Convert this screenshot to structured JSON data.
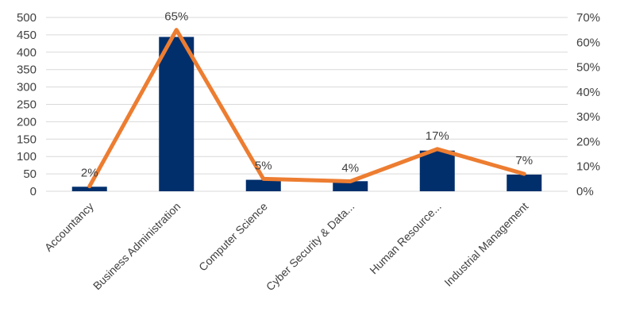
{
  "chart_data": {
    "type": "bar",
    "title": "",
    "xlabel": "",
    "ylabel": "",
    "categories": [
      "Accountancy",
      "Business Administration",
      "Computer Science",
      "Cyber Security & Data...",
      "Human Resource...",
      "Industrial Management"
    ],
    "series": [
      {
        "type": "bar",
        "axis": "left",
        "color": "#002f6c",
        "values": [
          13,
          444,
          33,
          29,
          117,
          48
        ]
      },
      {
        "type": "line",
        "axis": "right",
        "color": "#ed7d31",
        "values": [
          0.02,
          0.65,
          0.05,
          0.04,
          0.17,
          0.07
        ],
        "labels": [
          "2%",
          "65%",
          "5%",
          "4%",
          "17%",
          "7%"
        ]
      }
    ],
    "ylim": [
      0,
      500
    ],
    "yticks": [
      "0",
      "50",
      "100",
      "150",
      "200",
      "250",
      "300",
      "350",
      "400",
      "450",
      "500"
    ],
    "y2lim": [
      0,
      0.7
    ],
    "y2ticks": [
      "0%",
      "10%",
      "20%",
      "30%",
      "40%",
      "50%",
      "60%",
      "70%"
    ],
    "grid": true,
    "legend": "none"
  }
}
